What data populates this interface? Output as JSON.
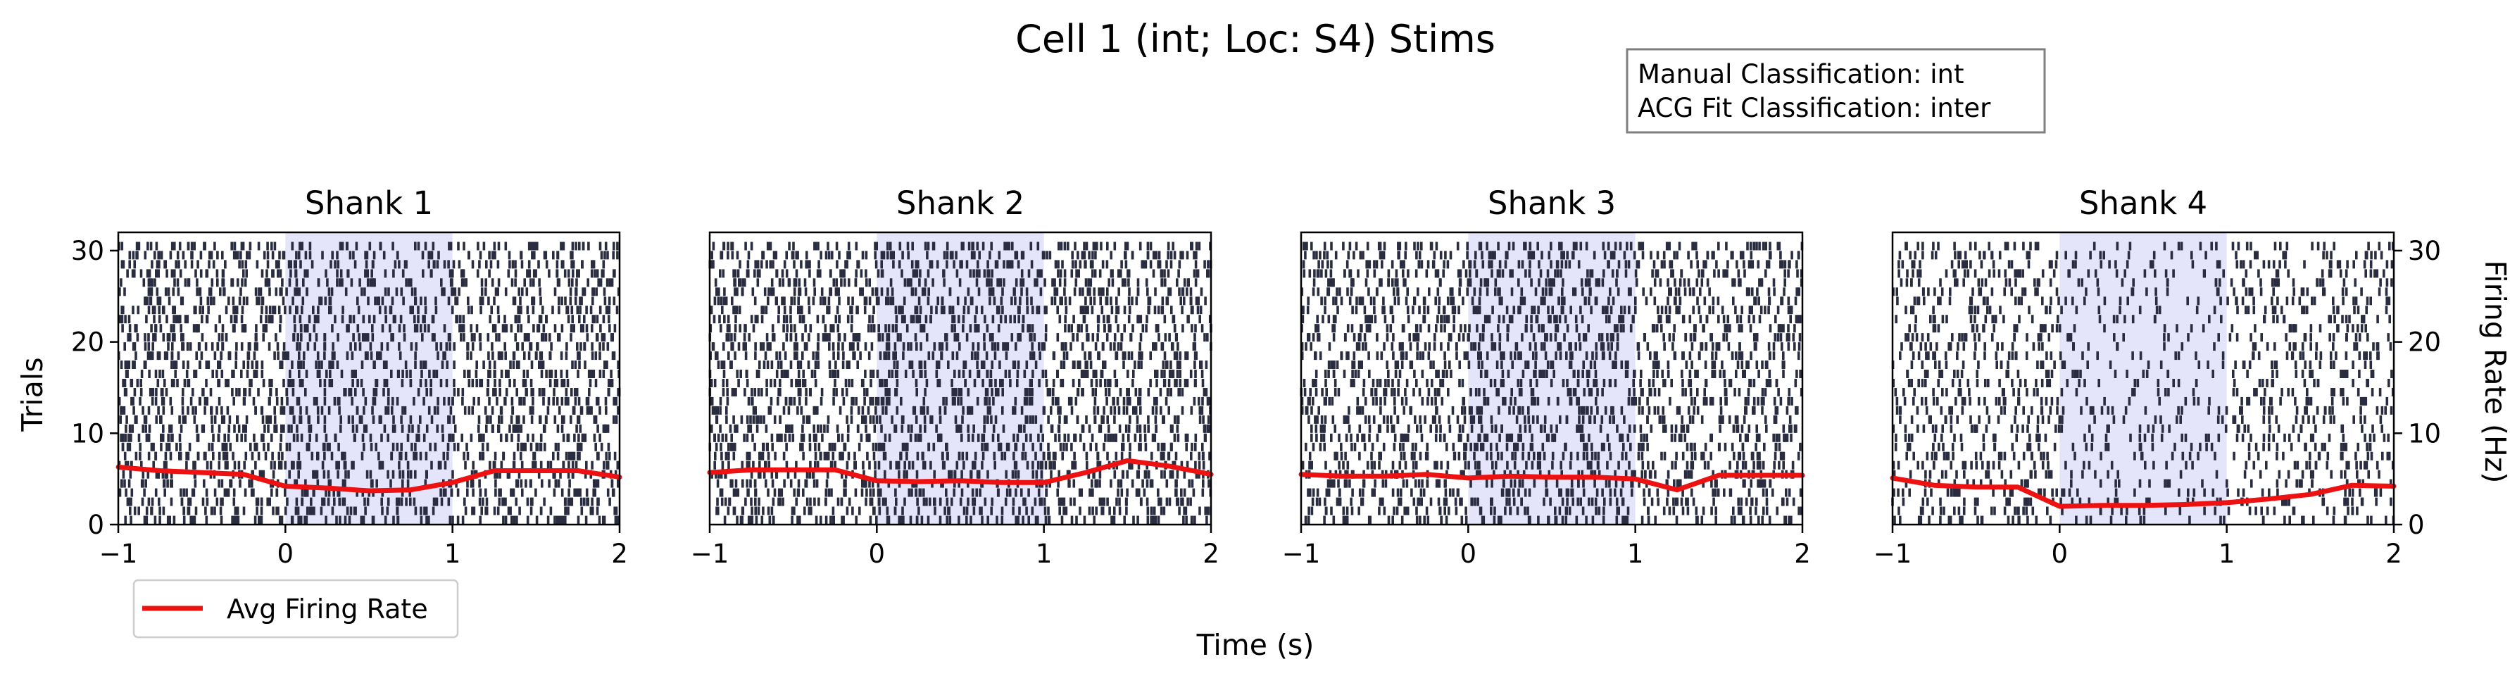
{
  "figure": {
    "title": "Cell 1 (int; Loc: S4) Stims",
    "xlabel": "Time (s)",
    "ylabel_left": "Trials",
    "ylabel_right": "Firing Rate (Hz)",
    "info_lines": [
      "Manual Classification: int",
      "ACG Fit Classification: inter"
    ],
    "legend_label": "Avg Firing Rate"
  },
  "chart_data": {
    "type": "raster",
    "x_ticks": [
      -1,
      0,
      1,
      2
    ],
    "x_tick_labels": [
      "−1",
      "0",
      "1",
      "2"
    ],
    "y_ticks": [
      0,
      10,
      20,
      30
    ],
    "xlim": [
      -1,
      2
    ],
    "ylim": [
      0,
      32
    ],
    "rate_ylim": [
      0,
      32
    ],
    "stimulus_window": [
      0,
      1
    ],
    "n_trials": 31,
    "colors": {
      "spikes": "#2a2d40",
      "stim": "#e4e4fb",
      "rate": "#ee1111"
    },
    "panels": [
      {
        "title": "Shank 1",
        "density": [
          2.6,
          2.6,
          2.6,
          2.6,
          2.4,
          2.0,
          2.0,
          2.0,
          2.2,
          2.6,
          2.6,
          2.6
        ],
        "rate": {
          "x": [
            -1,
            -0.75,
            -0.5,
            -0.25,
            0,
            0.25,
            0.5,
            0.75,
            1,
            1.25,
            1.5,
            1.75,
            2
          ],
          "y": [
            6.3,
            5.9,
            5.7,
            5.5,
            4.2,
            4.0,
            3.7,
            3.8,
            4.6,
            5.9,
            5.9,
            5.9,
            5.2
          ]
        }
      },
      {
        "title": "Shank 2",
        "density": [
          2.6,
          2.6,
          2.6,
          2.6,
          2.6,
          2.4,
          2.4,
          2.4,
          2.6,
          2.8,
          2.6,
          2.6
        ],
        "rate": {
          "x": [
            -1,
            -0.75,
            -0.5,
            -0.25,
            0,
            0.25,
            0.5,
            0.75,
            1,
            1.25,
            1.5,
            1.75,
            2
          ],
          "y": [
            5.7,
            6.0,
            6.0,
            6.0,
            4.8,
            4.7,
            4.8,
            4.6,
            4.6,
            5.7,
            7.0,
            6.4,
            5.5
          ]
        }
      },
      {
        "title": "Shank 3",
        "density": [
          2.4,
          2.4,
          2.4,
          2.4,
          2.4,
          2.4,
          2.4,
          2.2,
          2.2,
          2.2,
          2.4,
          2.4
        ],
        "rate": {
          "x": [
            -1,
            -0.75,
            -0.5,
            -0.25,
            0,
            0.25,
            0.5,
            0.75,
            1,
            1.25,
            1.5,
            1.75,
            2
          ],
          "y": [
            5.5,
            5.3,
            5.3,
            5.5,
            5.1,
            5.3,
            5.2,
            5.2,
            5.0,
            3.8,
            5.4,
            5.4,
            5.4
          ]
        }
      },
      {
        "title": "Shank 4",
        "density": [
          1.8,
          1.8,
          1.8,
          1.8,
          1.0,
          1.0,
          1.0,
          1.0,
          1.4,
          1.6,
          1.8,
          1.8
        ],
        "rate": {
          "x": [
            -1,
            -0.75,
            -0.5,
            -0.25,
            0,
            0.25,
            0.5,
            0.75,
            1,
            1.25,
            1.5,
            1.75,
            2
          ],
          "y": [
            5.1,
            4.3,
            4.1,
            4.1,
            2.0,
            2.1,
            2.1,
            2.2,
            2.4,
            2.8,
            3.3,
            4.3,
            4.2
          ]
        }
      }
    ]
  }
}
